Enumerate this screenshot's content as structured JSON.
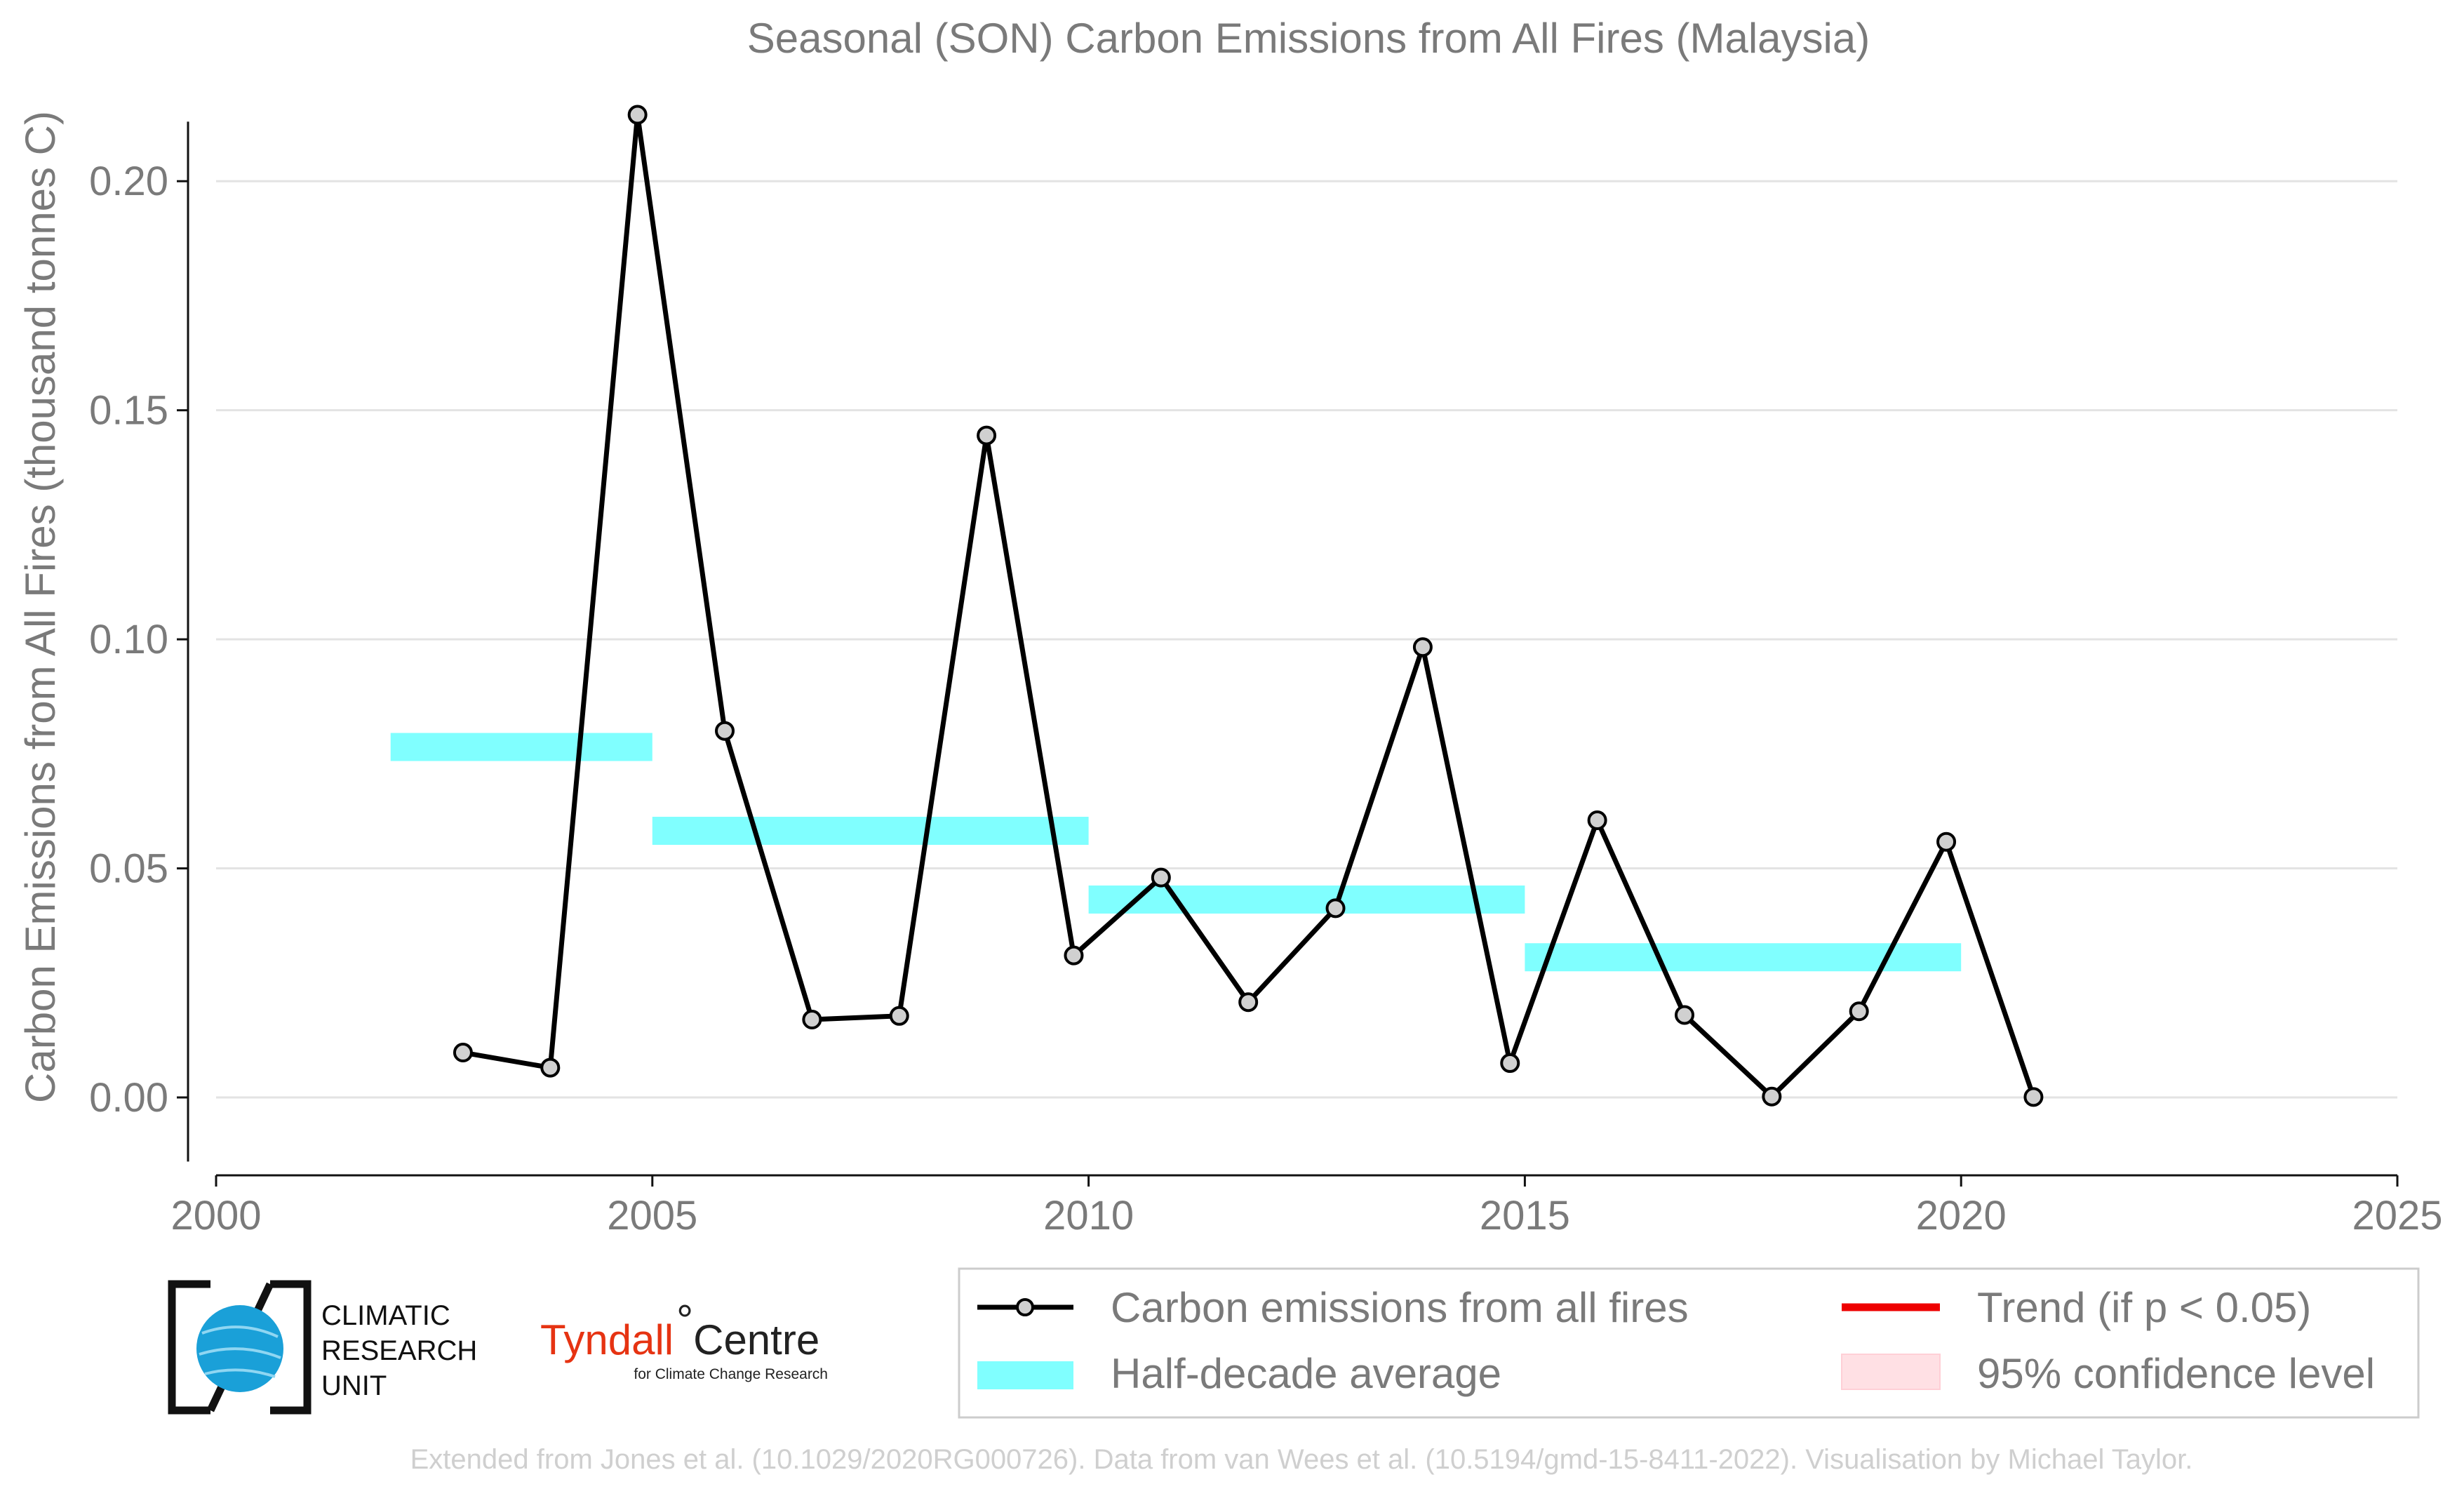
{
  "chart_data": {
    "type": "line",
    "title": "Seasonal (SON) Carbon Emissions from All Fires (Malaysia)",
    "ylabel": "Carbon Emissions from All Fires (thousand tonnes C)",
    "xlabel": "",
    "xlim": [
      2000,
      2025
    ],
    "ylim": [
      -0.017,
      0.225
    ],
    "x_ticks": [
      "2000",
      "2005",
      "2010",
      "2015",
      "2020",
      "2025"
    ],
    "y_ticks": [
      "0.00",
      "0.05",
      "0.10",
      "0.15",
      "0.20"
    ],
    "grid": "horizontal",
    "series": [
      {
        "name": "Carbon emissions from all fires",
        "color": "#000000",
        "x": [
          2002.83,
          2003.83,
          2004.83,
          2005.83,
          2006.83,
          2007.83,
          2008.83,
          2009.83,
          2010.83,
          2011.83,
          2012.83,
          2013.83,
          2014.83,
          2015.83,
          2016.83,
          2017.83,
          2018.83,
          2019.83,
          2020.83
        ],
        "values": [
          0.0098,
          0.0065,
          0.2145,
          0.08,
          0.017,
          0.0178,
          0.1445,
          0.031,
          0.048,
          0.0208,
          0.0413,
          0.0983,
          0.0075,
          0.0605,
          0.018,
          0.0002,
          0.0188,
          0.0558,
          0.0001
        ]
      }
    ],
    "half_decade_average": {
      "name": "Half-decade average",
      "color": "#80ffff",
      "segments": [
        {
          "x_start": 2002,
          "x_end": 2005,
          "value": 0.0765
        },
        {
          "x_start": 2005,
          "x_end": 2010,
          "value": 0.0582
        },
        {
          "x_start": 2010,
          "x_end": 2015,
          "value": 0.0432
        },
        {
          "x_start": 2015,
          "x_end": 2020,
          "value": 0.0306
        }
      ]
    },
    "legend": {
      "placement": "bottom-right",
      "items": [
        {
          "label": "Carbon emissions from all fires",
          "kind": "line-marker",
          "color": "#000000"
        },
        {
          "label": "Trend (if p < 0.05)",
          "kind": "line",
          "color": "#ee0000"
        },
        {
          "label": "Half-decade average",
          "kind": "band",
          "color": "#80ffff"
        },
        {
          "label": "95% confidence level",
          "kind": "band",
          "color": "#ffe0e4"
        }
      ]
    }
  },
  "logos": {
    "cru_lines": [
      "CLIMATIC",
      "RESEARCH",
      "UNIT"
    ],
    "tyndall_name": "Tyndall",
    "tyndall_centre": "Centre",
    "tyndall_sub": "for Climate Change Research"
  },
  "footer": "Extended from Jones et al. (10.1029/2020RG000726). Data from van Wees et al. (10.5194/gmd-15-8411-2022). Visualisation by Michael Taylor."
}
